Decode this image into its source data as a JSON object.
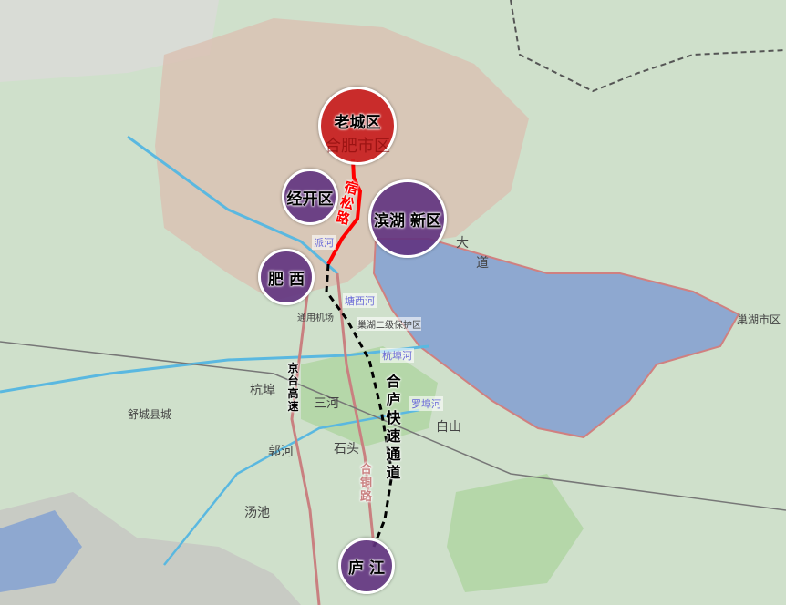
{
  "colors": {
    "land": "#cfe0cb",
    "lake": "#8ea8d0",
    "urban": "#d9c2b4",
    "district_purple": "#603280",
    "district_red": "#c81e1e",
    "road_red": "#ff0000",
    "highway": "#c98080"
  },
  "districts": [
    {
      "name": "老城区",
      "color": "red"
    },
    {
      "name": "经开区",
      "color": "purple"
    },
    {
      "name": "滨湖 新区",
      "color": "purple"
    },
    {
      "name": "肥  西",
      "color": "purple"
    },
    {
      "name": "庐  江",
      "color": "purple"
    }
  ],
  "roads": {
    "susong": "宿松路",
    "helu": "合庐快速通道",
    "jingtai": "京台高速",
    "hetong": "合铜路"
  },
  "rivers": [
    "杭埠河",
    "罗埠河",
    "派河",
    "塘西河"
  ],
  "places": [
    "三河",
    "杭埠",
    "白山",
    "石头",
    "郭河",
    "汤池",
    "舒城县城",
    "巢湖市区",
    "合肥市区",
    "巢湖二级保护区",
    "通用机场",
    "大",
    "道"
  ]
}
